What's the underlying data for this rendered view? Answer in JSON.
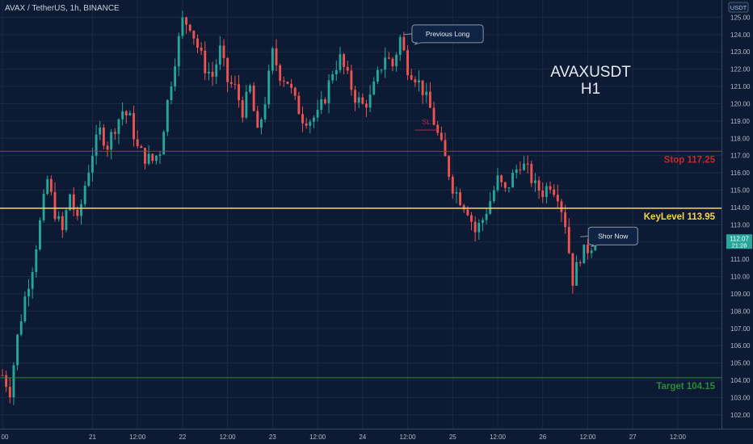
{
  "header": {
    "symbol_line": "AVAX / TetherUS, 1h, BINANCE"
  },
  "overlay": {
    "title_line1": "AVAXUSDT",
    "title_line2": "H1"
  },
  "colors": {
    "background": "#0c1a33",
    "up": "#26a69a",
    "down": "#ef5350",
    "stop_line": "#c6282d",
    "key_line": "#f7d44a",
    "target_line": "#2b8c3a",
    "grid": "#1a2a45",
    "axis_text": "#b2bac6"
  },
  "chart_data": {
    "type": "candlestick",
    "title": "AVAX / TetherUS, 1h, BINANCE",
    "price_axis_unit": "USDT",
    "y_ticks": [
      102.0,
      103.0,
      104.0,
      105.0,
      106.0,
      107.0,
      108.0,
      109.0,
      110.0,
      111.0,
      112.0,
      113.0,
      114.0,
      115.0,
      116.0,
      117.0,
      118.0,
      119.0,
      120.0,
      121.0,
      122.0,
      123.0,
      124.0,
      125.0
    ],
    "ylim": [
      101.2,
      126.0
    ],
    "x_ticks": [
      "00",
      "21",
      "12:00",
      "22",
      "12:00",
      "23",
      "12:00",
      "24",
      "12:00",
      "25",
      "12:00",
      "26",
      "12:00",
      "27",
      "12:00"
    ],
    "x_tick_hours": [
      0,
      24,
      36,
      48,
      60,
      72,
      84,
      96,
      108,
      120,
      132,
      144,
      156,
      168,
      180
    ],
    "xlim_hours": [
      0,
      191
    ],
    "levels": [
      {
        "label": "Stop 117.25",
        "value": 117.25,
        "tag": "117.25",
        "color": "#c6282d"
      },
      {
        "label": "KeyLevel 113.95",
        "value": 113.95,
        "tag": "113.95",
        "color": "#f7d44a"
      },
      {
        "label": "Target 104.15",
        "value": 104.15,
        "tag": "104.15",
        "color": "#2b8c3a"
      }
    ],
    "last_price": {
      "value": "112.07",
      "countdown": "21:28"
    },
    "annotations": [
      {
        "text": "Previous Long",
        "hour": 107,
        "price": 124.0
      },
      {
        "text": "Shor Now",
        "hour": 154,
        "price": 112.3
      },
      {
        "text": "SL",
        "hour": 113,
        "price": 118.8
      }
    ],
    "close_keyframes": [
      [
        0,
        104.3
      ],
      [
        2,
        103.4
      ],
      [
        4,
        106.5
      ],
      [
        6,
        108.8
      ],
      [
        8,
        110.6
      ],
      [
        10,
        113.1
      ],
      [
        12,
        115.6
      ],
      [
        14,
        113.7
      ],
      [
        16,
        112.6
      ],
      [
        18,
        114.8
      ],
      [
        20,
        113.1
      ],
      [
        22,
        115.3
      ],
      [
        24,
        117.2
      ],
      [
        26,
        118.4
      ],
      [
        28,
        117.6
      ],
      [
        30,
        118.7
      ],
      [
        32,
        119.6
      ],
      [
        34,
        119.1
      ],
      [
        36,
        117.4
      ],
      [
        38,
        116.9
      ],
      [
        40,
        116.7
      ],
      [
        42,
        117.3
      ],
      [
        44,
        120.1
      ],
      [
        46,
        122.6
      ],
      [
        48,
        124.8
      ],
      [
        50,
        124.6
      ],
      [
        52,
        123.3
      ],
      [
        54,
        122.1
      ],
      [
        56,
        121.6
      ],
      [
        58,
        123.1
      ],
      [
        60,
        121.3
      ],
      [
        62,
        120.9
      ],
      [
        64,
        119.6
      ],
      [
        66,
        120.9
      ],
      [
        68,
        118.2
      ],
      [
        70,
        120.2
      ],
      [
        72,
        122.9
      ],
      [
        74,
        121.7
      ],
      [
        76,
        121.3
      ],
      [
        78,
        120.1
      ],
      [
        80,
        119.2
      ],
      [
        82,
        119.1
      ],
      [
        84,
        119.3
      ],
      [
        86,
        120.4
      ],
      [
        88,
        121.9
      ],
      [
        90,
        122.6
      ],
      [
        92,
        121.5
      ],
      [
        94,
        120.4
      ],
      [
        96,
        119.9
      ],
      [
        98,
        120.3
      ],
      [
        100,
        121.6
      ],
      [
        102,
        122.8
      ],
      [
        104,
        122.2
      ],
      [
        106,
        123.8
      ],
      [
        108,
        122.1
      ],
      [
        110,
        121.6
      ],
      [
        112,
        120.8
      ],
      [
        114,
        119.7
      ],
      [
        116,
        118.2
      ],
      [
        118,
        116.8
      ],
      [
        120,
        115.2
      ],
      [
        122,
        114.5
      ],
      [
        124,
        113.9
      ],
      [
        126,
        112.6
      ],
      [
        128,
        113.3
      ],
      [
        130,
        114.4
      ],
      [
        132,
        115.6
      ],
      [
        134,
        114.9
      ],
      [
        136,
        115.8
      ],
      [
        138,
        116.6
      ],
      [
        140,
        116.1
      ],
      [
        142,
        115.2
      ],
      [
        144,
        114.9
      ],
      [
        146,
        115.4
      ],
      [
        148,
        114.8
      ],
      [
        150,
        113.1
      ],
      [
        152,
        109.8
      ],
      [
        154,
        111.2
      ],
      [
        156,
        111.6
      ],
      [
        158,
        112.1
      ]
    ]
  }
}
